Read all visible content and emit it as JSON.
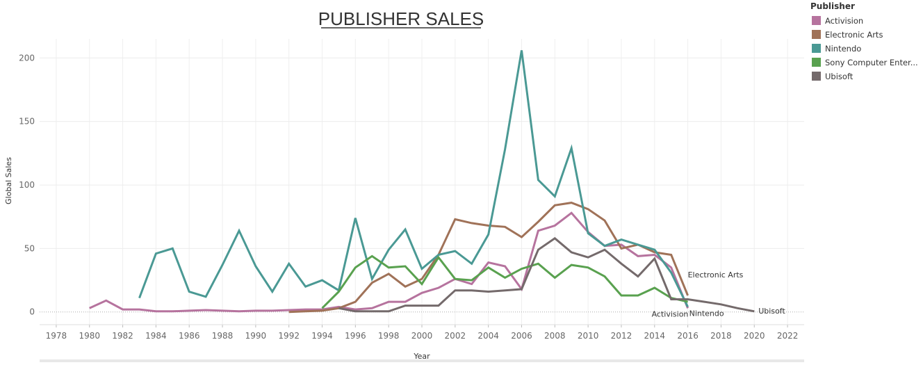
{
  "chart_data": {
    "type": "line",
    "title": "PUBLISHER SALES",
    "xlabel": "Year",
    "ylabel": "Global Sales",
    "xlim": [
      1977,
      2023
    ],
    "ylim": [
      -10,
      215
    ],
    "x_ticks": [
      "1978",
      "1980",
      "1982",
      "1984",
      "1986",
      "1988",
      "1990",
      "1992",
      "1994",
      "1996",
      "1998",
      "2000",
      "2002",
      "2004",
      "2006",
      "2008",
      "2010",
      "2012",
      "2014",
      "2016",
      "2018",
      "2020",
      "2022"
    ],
    "y_ticks": [
      "0",
      "50",
      "100",
      "150",
      "200"
    ],
    "grid": true,
    "legend": {
      "title": "Publisher",
      "position": "top-right"
    },
    "series": [
      {
        "name": "Activision",
        "label": "Activision",
        "legend_label": "Activision",
        "color": "#b6739e",
        "x": [
          1980,
          1981,
          1982,
          1983,
          1984,
          1985,
          1986,
          1987,
          1988,
          1989,
          1990,
          1991,
          1992,
          1993,
          1994,
          1995,
          1996,
          1997,
          1998,
          1999,
          2000,
          2001,
          2002,
          2003,
          2004,
          2005,
          2006,
          2007,
          2008,
          2009,
          2010,
          2011,
          2012,
          2013,
          2014,
          2015,
          2016
        ],
        "y": [
          3,
          9,
          2,
          2,
          0.5,
          0.5,
          1,
          1.5,
          1,
          0.5,
          1,
          1,
          1.5,
          2,
          2,
          4,
          2,
          3,
          8,
          8,
          15,
          19,
          26,
          22,
          39,
          36,
          18,
          64,
          68,
          78,
          63,
          52,
          53,
          44,
          45,
          35,
          3
        ]
      },
      {
        "name": "Electronic Arts",
        "label": "Electronic Arts",
        "legend_label": "Electronic Arts",
        "color": "#a07258",
        "x": [
          1992,
          1993,
          1994,
          1995,
          1996,
          1997,
          1998,
          1999,
          2000,
          2001,
          2002,
          2003,
          2004,
          2005,
          2006,
          2007,
          2008,
          2009,
          2010,
          2011,
          2012,
          2013,
          2014,
          2015,
          2016
        ],
        "y": [
          0,
          0.5,
          1,
          3,
          8,
          23,
          30,
          20,
          26,
          45,
          73,
          70,
          68,
          67,
          59,
          71,
          84,
          86,
          81,
          72,
          50,
          53,
          47,
          45,
          13
        ]
      },
      {
        "name": "Nintendo",
        "label": "Nintendo",
        "legend_label": "Nintendo",
        "color": "#4a9994",
        "x": [
          1983,
          1984,
          1985,
          1986,
          1987,
          1988,
          1989,
          1990,
          1991,
          1992,
          1993,
          1994,
          1995,
          1996,
          1997,
          1998,
          1999,
          2000,
          2001,
          2002,
          2003,
          2004,
          2005,
          2006,
          2007,
          2008,
          2009,
          2010,
          2011,
          2012,
          2013,
          2014,
          2015,
          2016
        ],
        "y": [
          11,
          46,
          50,
          16,
          12,
          37,
          64,
          36,
          16,
          38,
          20,
          25,
          17,
          74,
          26,
          49,
          65,
          34,
          45,
          48,
          38,
          61,
          128,
          206,
          104,
          91,
          129,
          62,
          52,
          57,
          53,
          49,
          31,
          4
        ]
      },
      {
        "name": "Sony Computer Entertainment",
        "label": "",
        "legend_label": "Sony Computer Enter...",
        "color": "#59a14f",
        "x": [
          1994,
          1995,
          1996,
          1997,
          1998,
          1999,
          2000,
          2001,
          2002,
          2003,
          2004,
          2005,
          2006,
          2007,
          2008,
          2009,
          2010,
          2011,
          2012,
          2013,
          2014,
          2015,
          2016
        ],
        "y": [
          3,
          16,
          35,
          44,
          35,
          36,
          22,
          43,
          26,
          25,
          35,
          27,
          34,
          38,
          27,
          37,
          35,
          28,
          13,
          13,
          19,
          11,
          8
        ]
      },
      {
        "name": "Ubisoft",
        "label": "Ubisoft",
        "legend_label": "Ubisoft",
        "color": "#746a6b",
        "x": [
          1995,
          1996,
          1997,
          1998,
          1999,
          2000,
          2001,
          2002,
          2003,
          2004,
          2005,
          2006,
          2007,
          2008,
          2009,
          2010,
          2011,
          2012,
          2013,
          2014,
          2015,
          2016,
          2017,
          2018,
          2019,
          2020
        ],
        "y": [
          3,
          0.5,
          0.5,
          0.5,
          5,
          5,
          5,
          17,
          17,
          16,
          17,
          18,
          49,
          58,
          47,
          43,
          49,
          38,
          28,
          42,
          10,
          10,
          8,
          6,
          3,
          0.5
        ]
      }
    ]
  }
}
